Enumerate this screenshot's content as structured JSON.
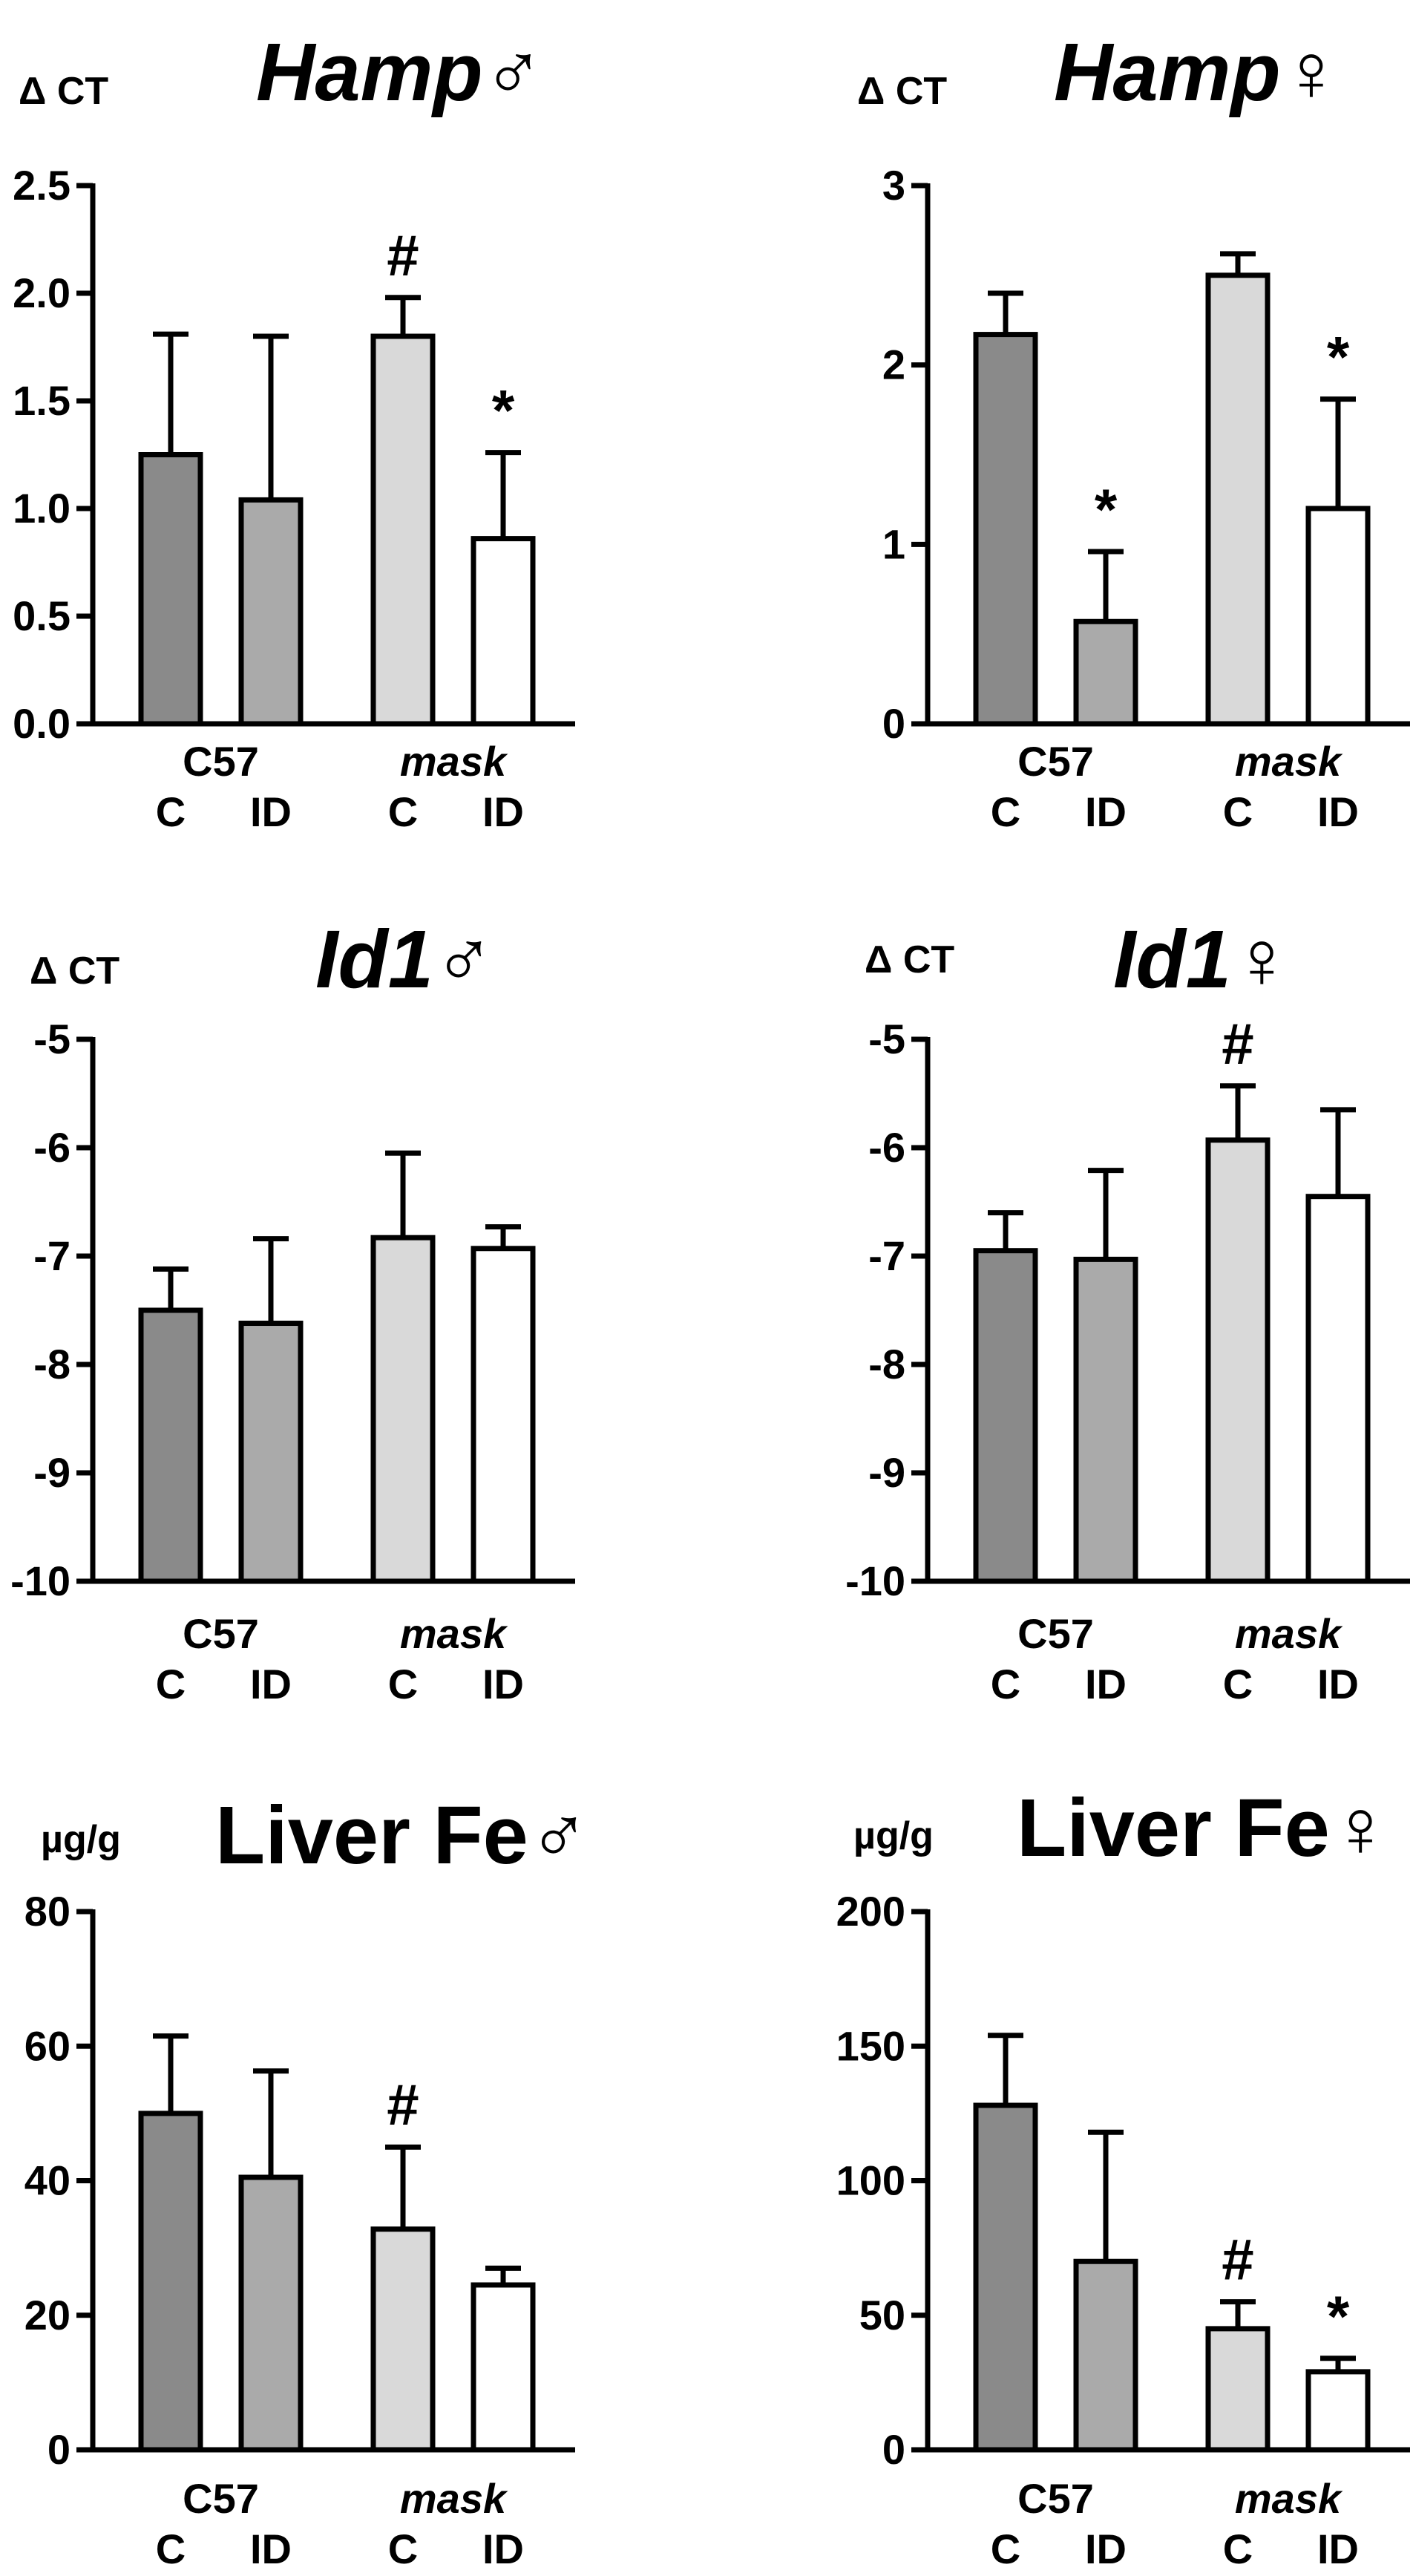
{
  "chart_data": [
    {
      "type": "bar",
      "title": "Hamp",
      "sex_symbol": "♂",
      "ylabel": "Δ CT",
      "ylim": [
        0,
        2.5
      ],
      "yticks": [
        "0.0",
        "0.5",
        "1.0",
        "1.5",
        "2.0",
        "2.5"
      ],
      "yticks_values": [
        0,
        0.5,
        1.0,
        1.5,
        2.0,
        2.5
      ],
      "groups": [
        "C57",
        "mask"
      ],
      "categories": [
        "C",
        "ID",
        "C",
        "ID"
      ],
      "values": [
        1.25,
        1.04,
        1.8,
        0.86
      ],
      "errors": [
        0.56,
        0.76,
        0.18,
        0.4
      ],
      "annotations": [
        "",
        "",
        "#",
        "*"
      ],
      "colors": [
        "#8a8a8a",
        "#aaaaaa",
        "#d9d9d9",
        "#ffffff"
      ]
    },
    {
      "type": "bar",
      "title": "Hamp",
      "sex_symbol": "♀",
      "ylabel": "Δ CT",
      "ylim": [
        0,
        3
      ],
      "yticks": [
        "0",
        "1",
        "2",
        "3"
      ],
      "yticks_values": [
        0,
        1,
        2,
        3
      ],
      "groups": [
        "C57",
        "mask"
      ],
      "categories": [
        "C",
        "ID",
        "C",
        "ID"
      ],
      "values": [
        2.17,
        0.57,
        2.5,
        1.2
      ],
      "errors": [
        0.23,
        0.39,
        0.12,
        0.61
      ],
      "annotations": [
        "",
        "*",
        "",
        "*"
      ],
      "colors": [
        "#8a8a8a",
        "#aaaaaa",
        "#d9d9d9",
        "#ffffff"
      ]
    },
    {
      "type": "bar",
      "title": "Id1",
      "sex_symbol": "♂",
      "ylabel": "Δ CT",
      "ylim": [
        -10,
        -5
      ],
      "yticks": [
        "-10",
        "-9",
        "-8",
        "-7",
        "-6",
        "-5"
      ],
      "yticks_values": [
        -10,
        -9,
        -8,
        -7,
        -6,
        -5
      ],
      "groups": [
        "C57",
        "mask"
      ],
      "categories": [
        "C",
        "ID",
        "C",
        "ID"
      ],
      "values": [
        -7.5,
        -7.62,
        -6.83,
        -6.93
      ],
      "errors": [
        0.38,
        0.78,
        0.78,
        0.2
      ],
      "annotations": [
        "",
        "",
        "",
        ""
      ],
      "colors": [
        "#8a8a8a",
        "#aaaaaa",
        "#d9d9d9",
        "#ffffff"
      ]
    },
    {
      "type": "bar",
      "title": "Id1",
      "sex_symbol": "♀",
      "ylabel": "Δ CT",
      "ylim": [
        -10,
        -5
      ],
      "yticks": [
        "-10",
        "-9",
        "-8",
        "-7",
        "-6",
        "-5"
      ],
      "yticks_values": [
        -10,
        -9,
        -8,
        -7,
        -6,
        -5
      ],
      "groups": [
        "C57",
        "mask"
      ],
      "categories": [
        "C",
        "ID",
        "C",
        "ID"
      ],
      "values": [
        -6.95,
        -7.03,
        -5.93,
        -6.45
      ],
      "errors": [
        0.35,
        0.82,
        0.5,
        0.8
      ],
      "annotations": [
        "",
        "",
        "#",
        ""
      ],
      "colors": [
        "#8a8a8a",
        "#aaaaaa",
        "#d9d9d9",
        "#ffffff"
      ]
    },
    {
      "type": "bar",
      "title": "Liver Fe",
      "sex_symbol": "♂",
      "ylabel": "µg/g",
      "ylim": [
        0,
        80
      ],
      "yticks": [
        "0",
        "20",
        "40",
        "60",
        "80"
      ],
      "yticks_values": [
        0,
        20,
        40,
        60,
        80
      ],
      "groups": [
        "C57",
        "mask"
      ],
      "categories": [
        "C",
        "ID",
        "C",
        "ID"
      ],
      "values": [
        50,
        40.5,
        32.8,
        24.5
      ],
      "errors": [
        11.5,
        15.8,
        12.2,
        2.5
      ],
      "annotations": [
        "",
        "",
        "#",
        ""
      ],
      "colors": [
        "#8a8a8a",
        "#aaaaaa",
        "#d9d9d9",
        "#ffffff"
      ]
    },
    {
      "type": "bar",
      "title": "Liver Fe",
      "sex_symbol": "♀",
      "ylabel": "µg/g",
      "ylim": [
        0,
        200
      ],
      "yticks": [
        "0",
        "50",
        "100",
        "150",
        "200"
      ],
      "yticks_values": [
        0,
        50,
        100,
        150,
        200
      ],
      "groups": [
        "C57",
        "mask"
      ],
      "categories": [
        "C",
        "ID",
        "C",
        "ID"
      ],
      "values": [
        128,
        70,
        45,
        29
      ],
      "errors": [
        26,
        48,
        10,
        5
      ],
      "annotations": [
        "",
        "",
        "#",
        "*"
      ],
      "colors": [
        "#8a8a8a",
        "#aaaaaa",
        "#d9d9d9",
        "#ffffff"
      ]
    }
  ]
}
